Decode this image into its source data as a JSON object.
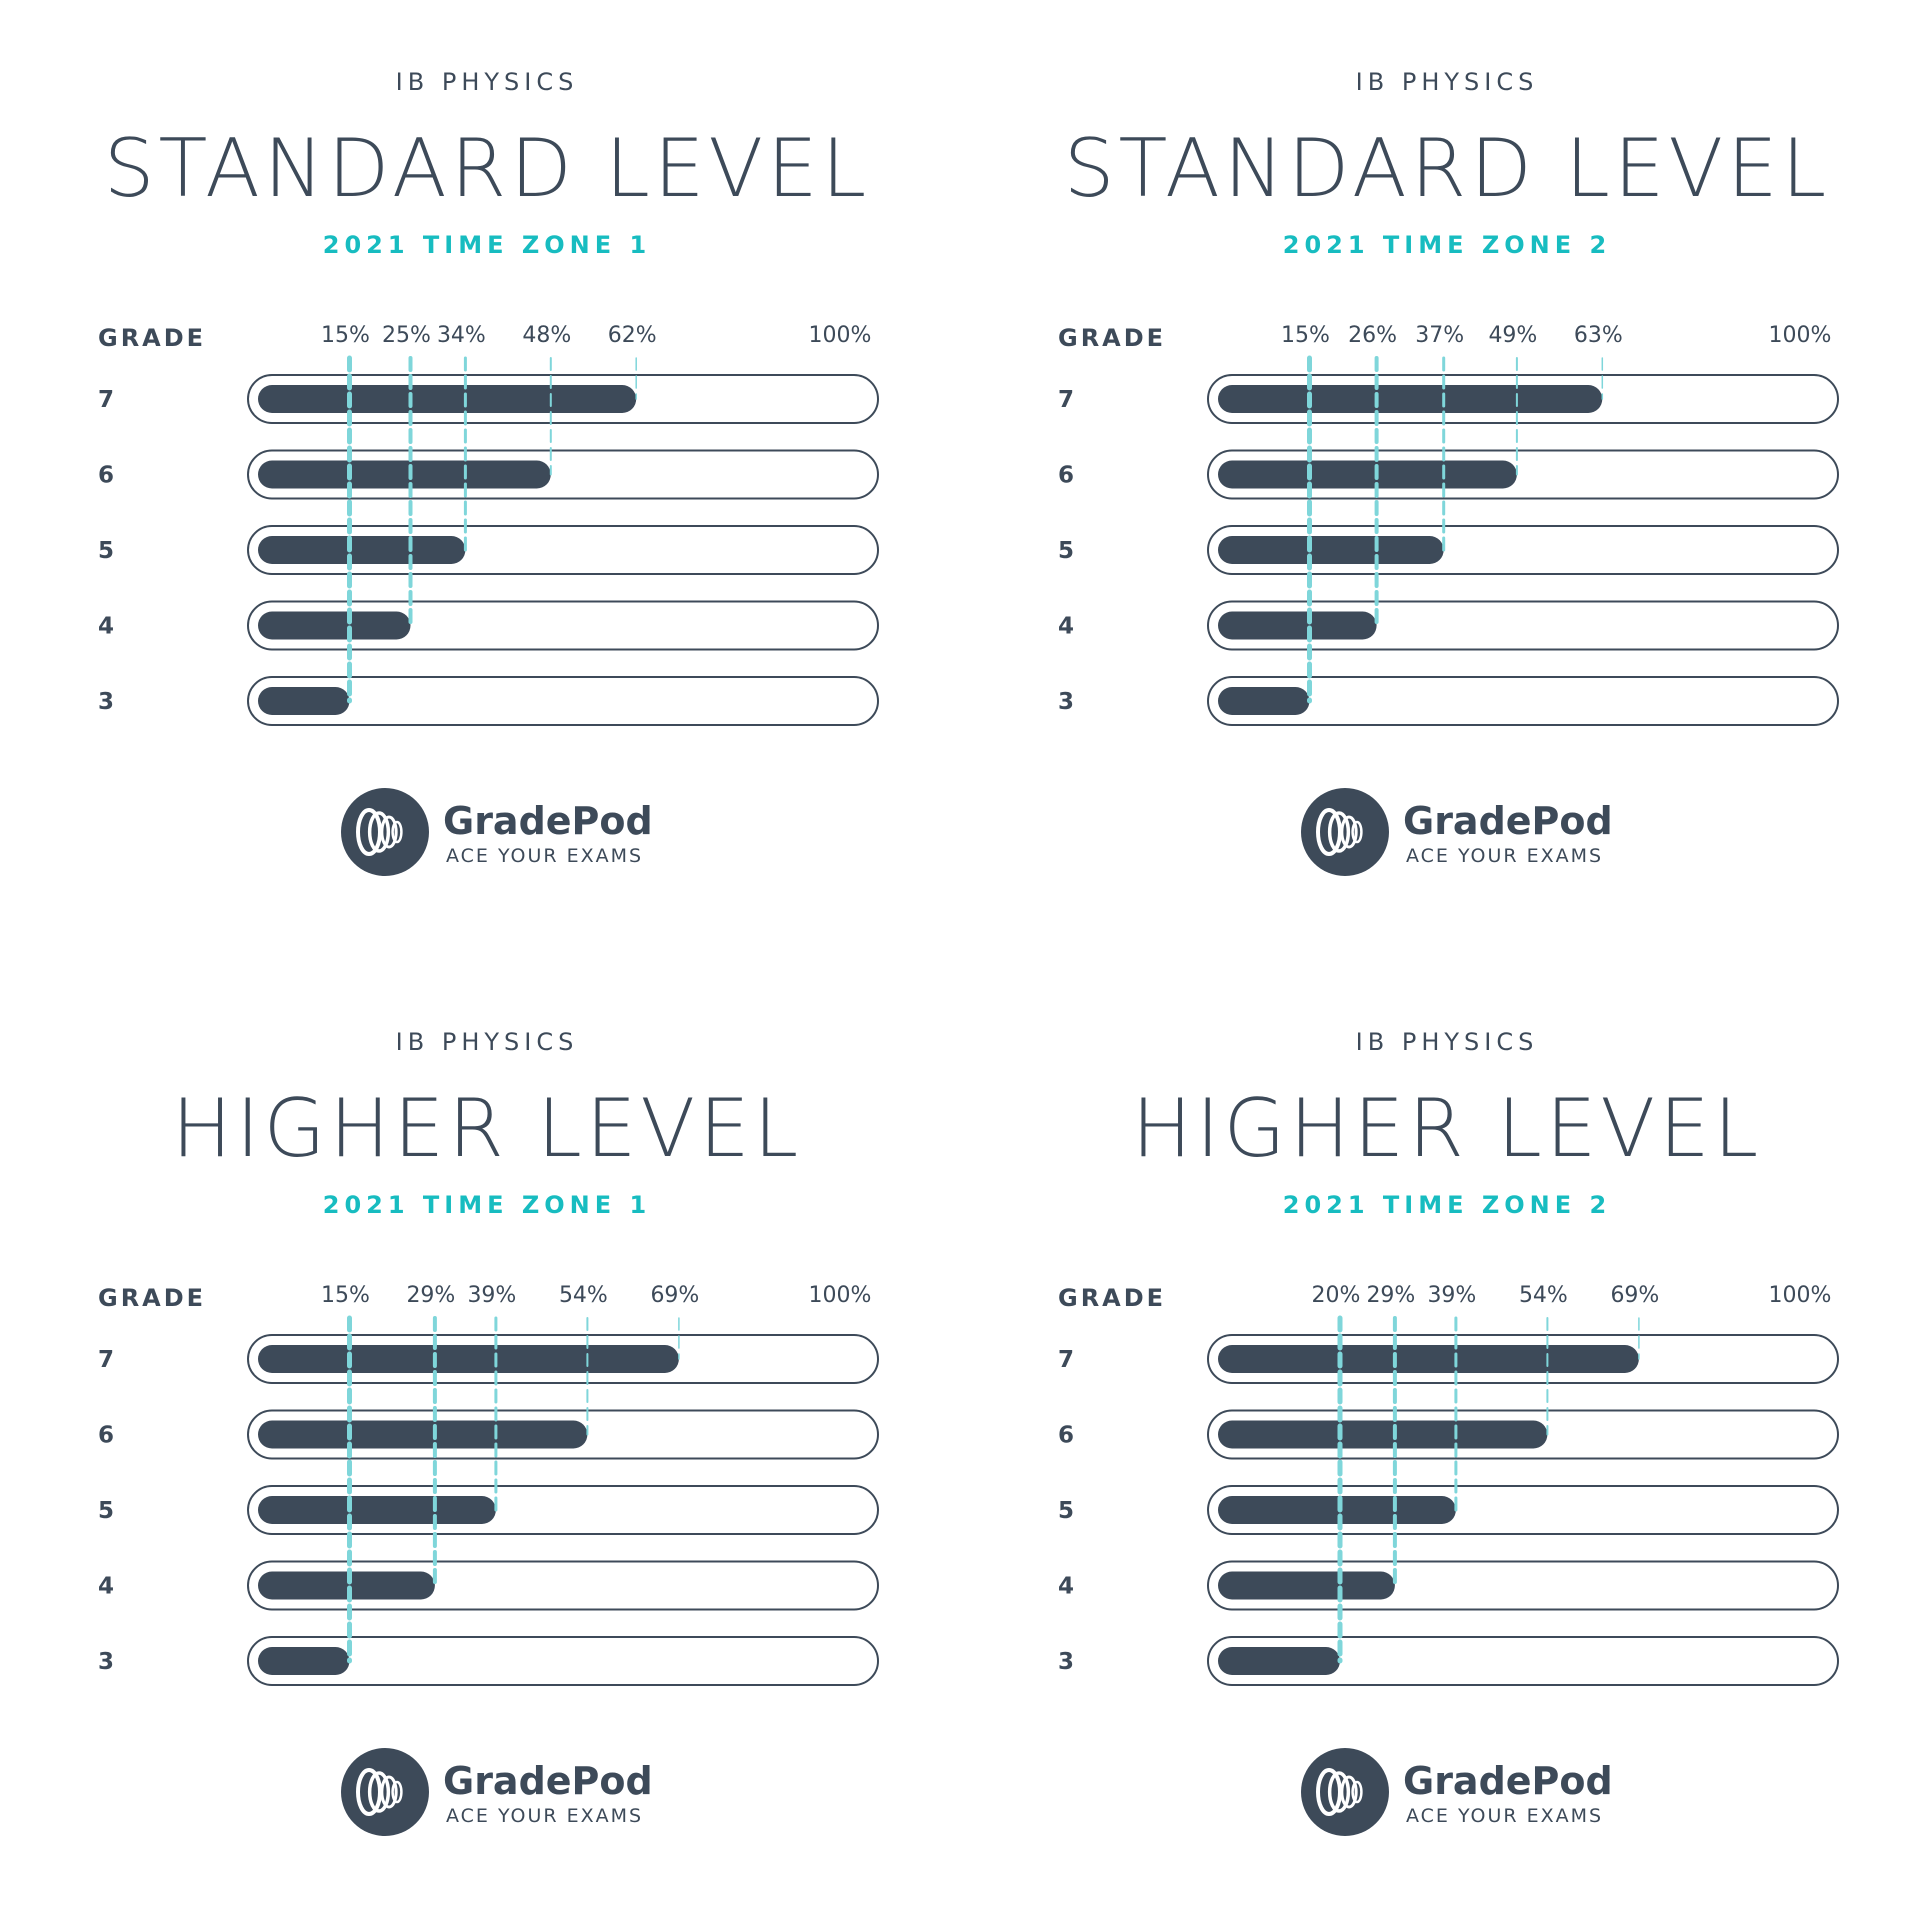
{
  "colors": {
    "text": "#3d4a59",
    "bar": "#3d4a59",
    "accent": "#17bcc0",
    "guide": "#7fd6da",
    "track_fill": "#ffffff"
  },
  "brand": {
    "name": "GradePod",
    "tagline": "ACE YOUR EXAMS",
    "icon": "gradepod-logo-icon"
  },
  "chart_data": [
    {
      "type": "bar",
      "orientation": "horizontal",
      "subject": "IB PHYSICS",
      "title": "STANDARD LEVEL",
      "subtitle": "2021 TIME ZONE 1",
      "ylabel": "GRADE",
      "categories": [
        "7",
        "6",
        "5",
        "4",
        "3"
      ],
      "values": [
        62,
        48,
        34,
        25,
        15
      ],
      "tick_labels": [
        "15%",
        "25%",
        "34%",
        "48%",
        "62%"
      ],
      "axis_max_label": "100%",
      "xlim": [
        0,
        100
      ]
    },
    {
      "type": "bar",
      "orientation": "horizontal",
      "subject": "IB PHYSICS",
      "title": "STANDARD LEVEL",
      "subtitle": "2021 TIME ZONE 2",
      "ylabel": "GRADE",
      "categories": [
        "7",
        "6",
        "5",
        "4",
        "3"
      ],
      "values": [
        63,
        49,
        37,
        26,
        15
      ],
      "tick_labels": [
        "15%",
        "26%",
        "37%",
        "49%",
        "63%"
      ],
      "axis_max_label": "100%",
      "xlim": [
        0,
        100
      ]
    },
    {
      "type": "bar",
      "orientation": "horizontal",
      "subject": "IB PHYSICS",
      "title": "HIGHER LEVEL",
      "subtitle": "2021 TIME ZONE 1",
      "ylabel": "GRADE",
      "categories": [
        "7",
        "6",
        "5",
        "4",
        "3"
      ],
      "values": [
        69,
        54,
        39,
        29,
        15
      ],
      "tick_labels": [
        "15%",
        "29%",
        "39%",
        "54%",
        "69%"
      ],
      "axis_max_label": "100%",
      "xlim": [
        0,
        100
      ]
    },
    {
      "type": "bar",
      "orientation": "horizontal",
      "subject": "IB PHYSICS",
      "title": "HIGHER LEVEL",
      "subtitle": "2021 TIME ZONE 2",
      "ylabel": "GRADE",
      "categories": [
        "7",
        "6",
        "5",
        "4",
        "3"
      ],
      "values": [
        69,
        54,
        39,
        29,
        20
      ],
      "tick_labels": [
        "20%",
        "29%",
        "39%",
        "54%",
        "69%"
      ],
      "axis_max_label": "100%",
      "xlim": [
        0,
        100
      ]
    }
  ]
}
